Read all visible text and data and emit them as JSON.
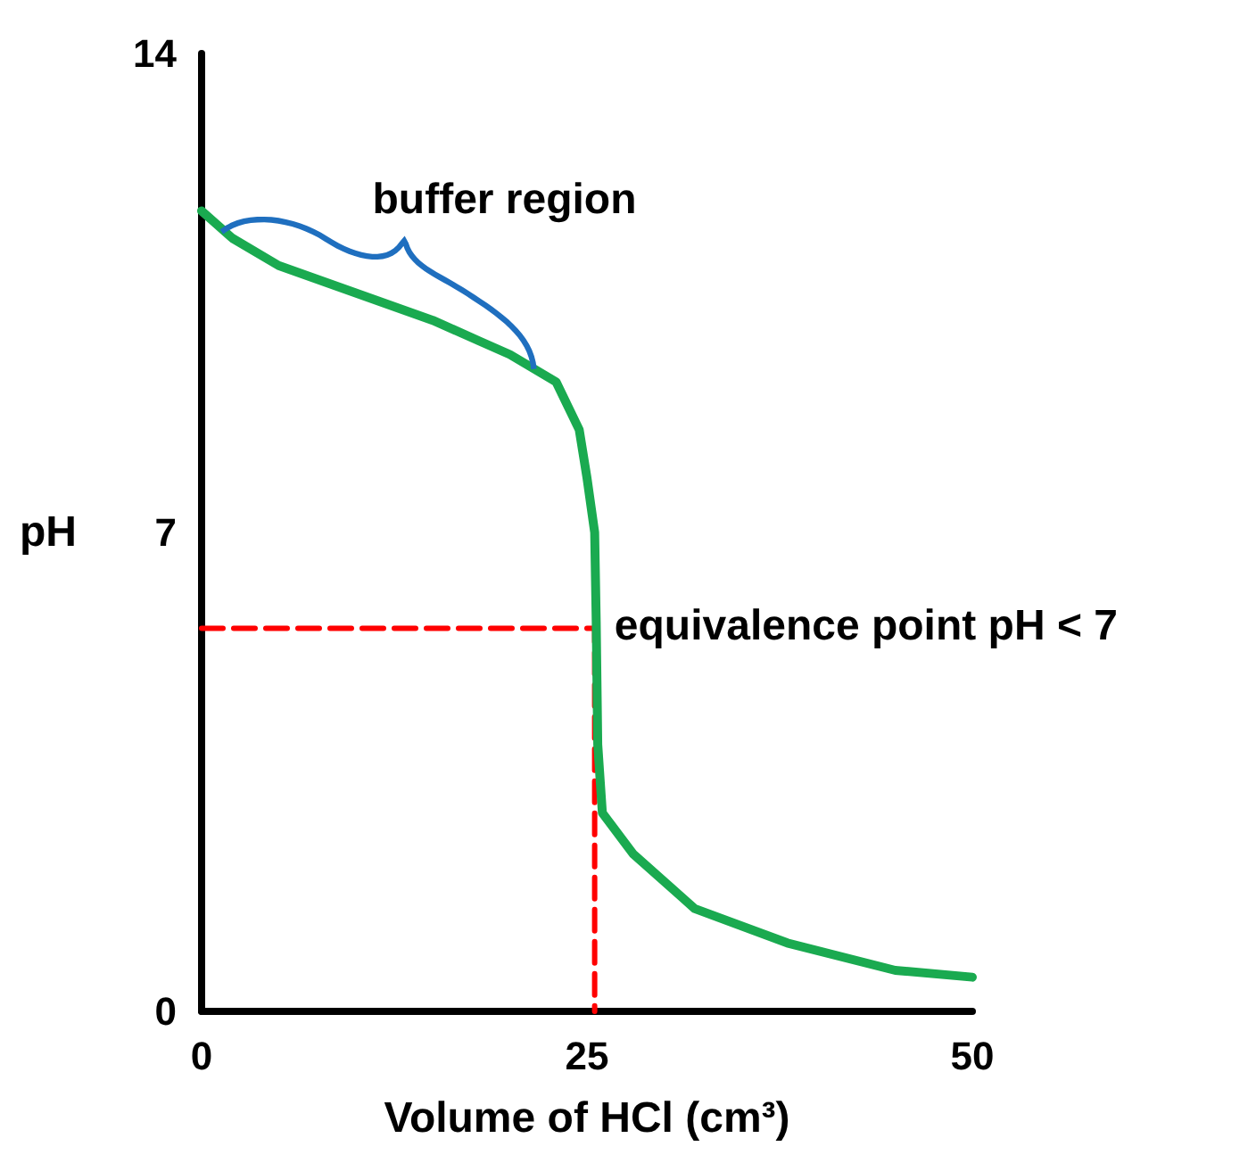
{
  "chart_data": {
    "type": "line",
    "xlabel": "Volume of HCl (cm³)",
    "ylabel": "pH",
    "xlim": [
      0,
      50
    ],
    "ylim": [
      0,
      14
    ],
    "xticks": [
      0,
      25,
      50
    ],
    "yticks": [
      0,
      7,
      14
    ],
    "grid": false,
    "marker": "none",
    "series": [
      {
        "color": "#1aaa50",
        "line_style": "solid",
        "x": [
          0,
          2,
          5,
          10,
          15,
          18,
          20,
          23,
          24.5,
          25,
          25.5,
          25.6,
          25.7,
          26,
          28,
          32,
          38,
          45,
          50
        ],
        "values": [
          11.7,
          11.3,
          10.9,
          10.5,
          10.1,
          9.8,
          9.6,
          9.2,
          8.5,
          7.8,
          7.0,
          5.7,
          3.9,
          2.9,
          2.3,
          1.5,
          1.0,
          0.6,
          0.5
        ]
      },
      {
        "color": "#ff0000",
        "line_style": "dashed",
        "x": [
          0,
          25.5,
          25.5
        ],
        "values": [
          5.6,
          5.6,
          0
        ]
      }
    ],
    "annotations": [
      "buffer region",
      {
        "text": "equivalence point pH < 7",
        "x": 25.5,
        "y": 5.6
      }
    ]
  }
}
